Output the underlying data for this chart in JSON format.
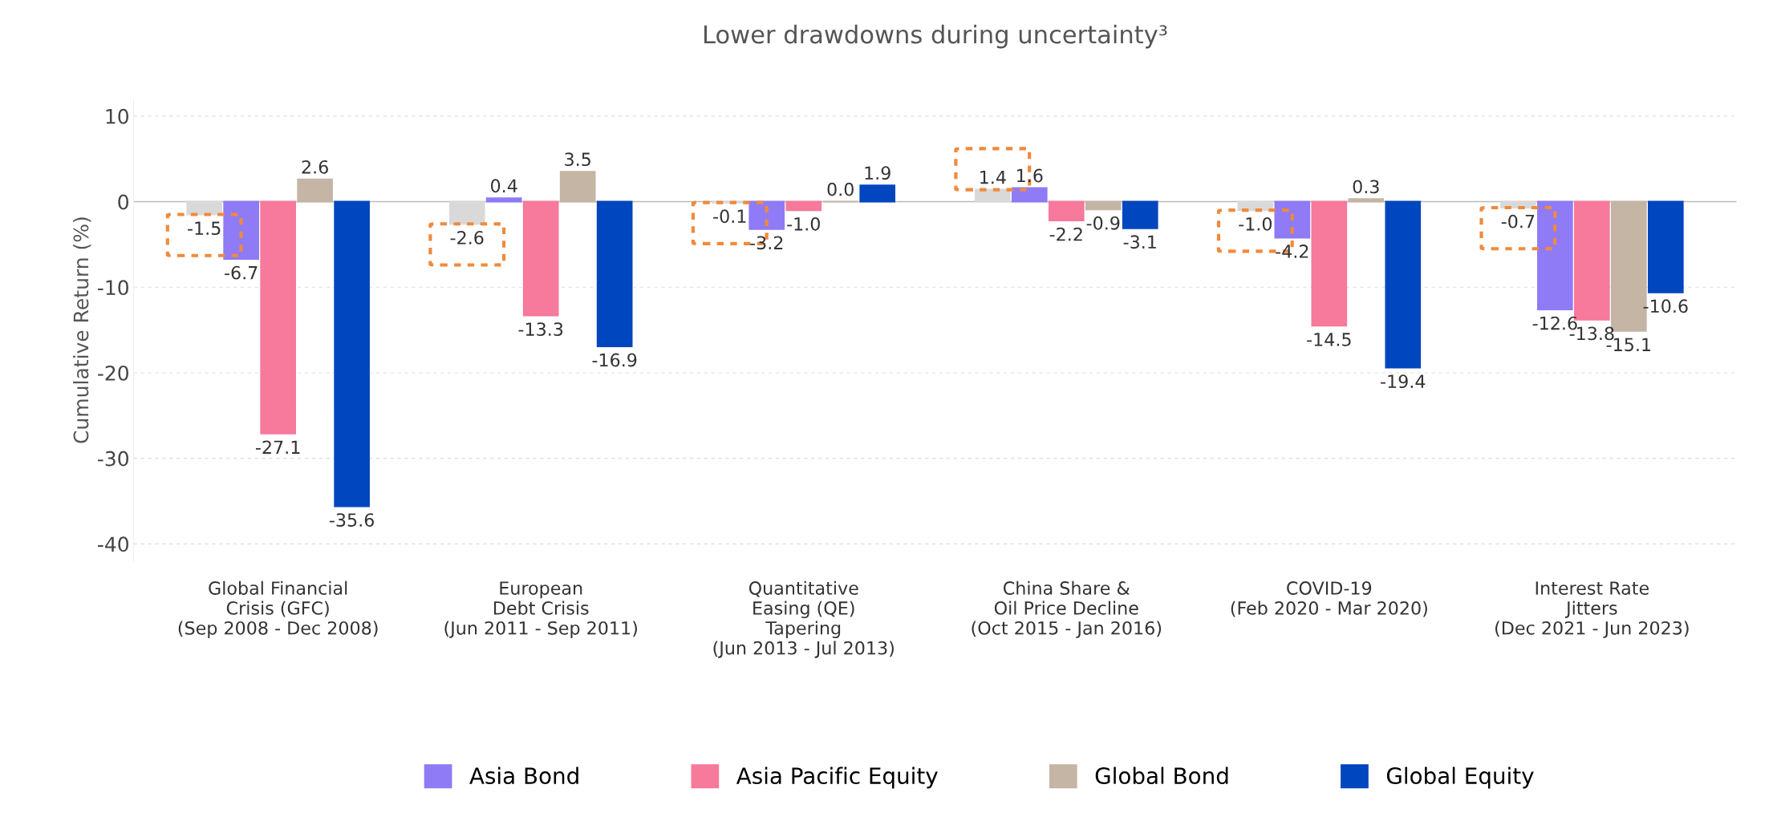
{
  "chart_data": {
    "type": "bar",
    "title": "Lower drawdowns during uncertainty³",
    "ylabel": "Cumulative Return (%)",
    "categories": [
      "Global Financial\nCrisis (GFC)\n(Sep 2008 - Dec 2008)",
      "European\nDebt Crisis\n(Jun 2011 - Sep 2011)",
      "Quantitative\nEasing (QE)\nTapering\n(Jun 2013 - Jul 2013)",
      "China Share &\nOil Price Decline\n(Oct 2015 - Jan 2016)",
      "COVID-19\n(Feb 2020 - Mar 2020)",
      "Interest Rate\nJitters\n(Dec 2021 - Jun 2023)"
    ],
    "series": [
      {
        "color": "#d9d9d9",
        "values": [
          -1.5,
          -2.6,
          -0.1,
          1.4,
          -1.0,
          -0.7
        ],
        "value_labels": [
          "-1.5",
          "-2.6",
          "-0.1",
          "1.4",
          "-1.0",
          "-0.7"
        ]
      },
      {
        "name": "Asia Bond",
        "color": "#8f7bf5",
        "values": [
          -6.7,
          0.4,
          -3.2,
          1.6,
          -4.2,
          -12.6
        ],
        "value_labels": [
          "-6.7",
          "0.4",
          "-3.2",
          "1.6",
          "-4.2",
          "-12.6"
        ]
      },
      {
        "name": "Asia Pacific Equity",
        "color": "#f7799b",
        "values": [
          -27.1,
          -13.3,
          -1.0,
          -2.2,
          -14.5,
          -13.8
        ],
        "value_labels": [
          "-27.1",
          "-13.3",
          "-1.0",
          "-2.2",
          "-14.5",
          "-13.8"
        ]
      },
      {
        "name": "Global Bond",
        "color": "#c4b5a5",
        "values": [
          2.6,
          3.5,
          0.0,
          -0.9,
          0.3,
          -15.1
        ],
        "value_labels": [
          "2.6",
          "3.5",
          "0.0",
          "-0.9",
          "0.3",
          "-15.1"
        ]
      },
      {
        "name": "Global Equity",
        "color": "#0046be",
        "values": [
          -35.6,
          -16.9,
          1.9,
          -3.1,
          -19.4,
          -10.6
        ],
        "value_labels": [
          "-35.6",
          "-16.9",
          "1.9",
          "-3.1",
          "-19.4",
          "-10.6"
        ]
      }
    ],
    "ylim": [
      -42,
      12
    ],
    "yticks": [
      -40,
      -30,
      -20,
      -10,
      0,
      10
    ],
    "grid": "y",
    "legend": "bottom"
  }
}
